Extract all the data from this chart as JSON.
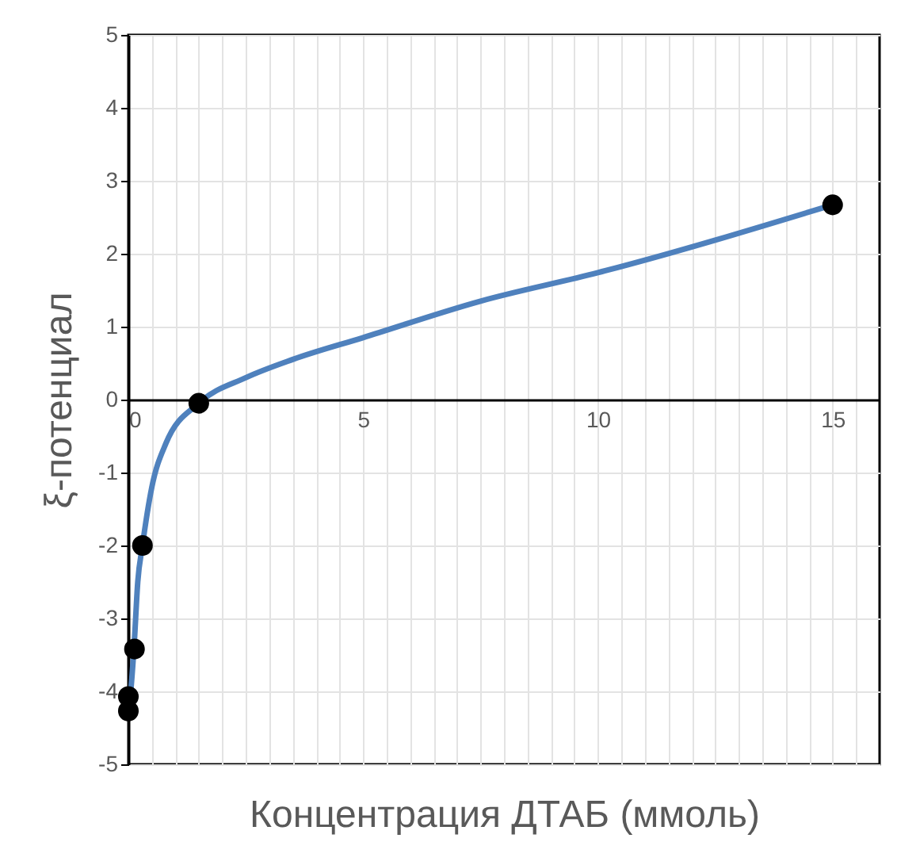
{
  "chart_data": {
    "type": "scatter",
    "xlabel": "Концентрация ДТАБ (ммоль)",
    "ylabel": "ξ-потенциал",
    "xlim": [
      0,
      16
    ],
    "ylim": [
      -5,
      5
    ],
    "xticks": [
      0,
      {
        "value": 0.5,
        "label": null
      },
      {
        "value": 1,
        "label": null
      },
      {
        "value": 1.5,
        "label": null
      },
      {
        "value": 2,
        "label": null
      },
      {
        "value": 2.5,
        "label": null
      },
      {
        "value": 3,
        "label": null
      },
      {
        "value": 3.5,
        "label": null
      },
      {
        "value": 4,
        "label": null
      },
      {
        "value": 4.5,
        "label": null
      },
      5,
      {
        "value": 5.5,
        "label": null
      },
      {
        "value": 6,
        "label": null
      },
      {
        "value": 6.5,
        "label": null
      },
      {
        "value": 7,
        "label": null
      },
      {
        "value": 7.5,
        "label": null
      },
      {
        "value": 8,
        "label": null
      },
      {
        "value": 8.5,
        "label": null
      },
      {
        "value": 9,
        "label": null
      },
      {
        "value": 9.5,
        "label": null
      },
      10,
      {
        "value": 10.5,
        "label": null
      },
      {
        "value": 11,
        "label": null
      },
      {
        "value": 11.5,
        "label": null
      },
      {
        "value": 12,
        "label": null
      },
      {
        "value": 12.5,
        "label": null
      },
      {
        "value": 13,
        "label": null
      },
      {
        "value": 13.5,
        "label": null
      },
      {
        "value": 14,
        "label": null
      },
      {
        "value": 14.5,
        "label": null
      },
      15,
      {
        "value": 15.5,
        "label": null
      }
    ],
    "yticks": [
      -5,
      -4,
      -3,
      -2,
      -1,
      0,
      1,
      2,
      3,
      4,
      5
    ],
    "grid": true,
    "series": [
      {
        "type": "line",
        "color": "#4f81bd",
        "marker": "none",
        "line_style": "solid",
        "x": [
          0,
          0.05,
          0.12,
          0.2,
          0.3,
          0.5,
          0.8,
          1.5,
          2.5,
          3.5,
          5,
          7.5,
          10,
          15
        ],
        "values": [
          -4.27,
          -4.0,
          -3.4,
          -2.5,
          -2.0,
          -1.2,
          -0.6,
          -0.05,
          0.3,
          0.55,
          0.85,
          1.35,
          1.74,
          2.67
        ]
      },
      {
        "color": "#000000",
        "marker": "circle",
        "x": [
          0,
          0,
          0.13,
          0.3,
          1.5,
          15
        ],
        "values": [
          -4.27,
          -4.07,
          -3.42,
          -2.0,
          -0.05,
          2.67
        ]
      }
    ]
  }
}
